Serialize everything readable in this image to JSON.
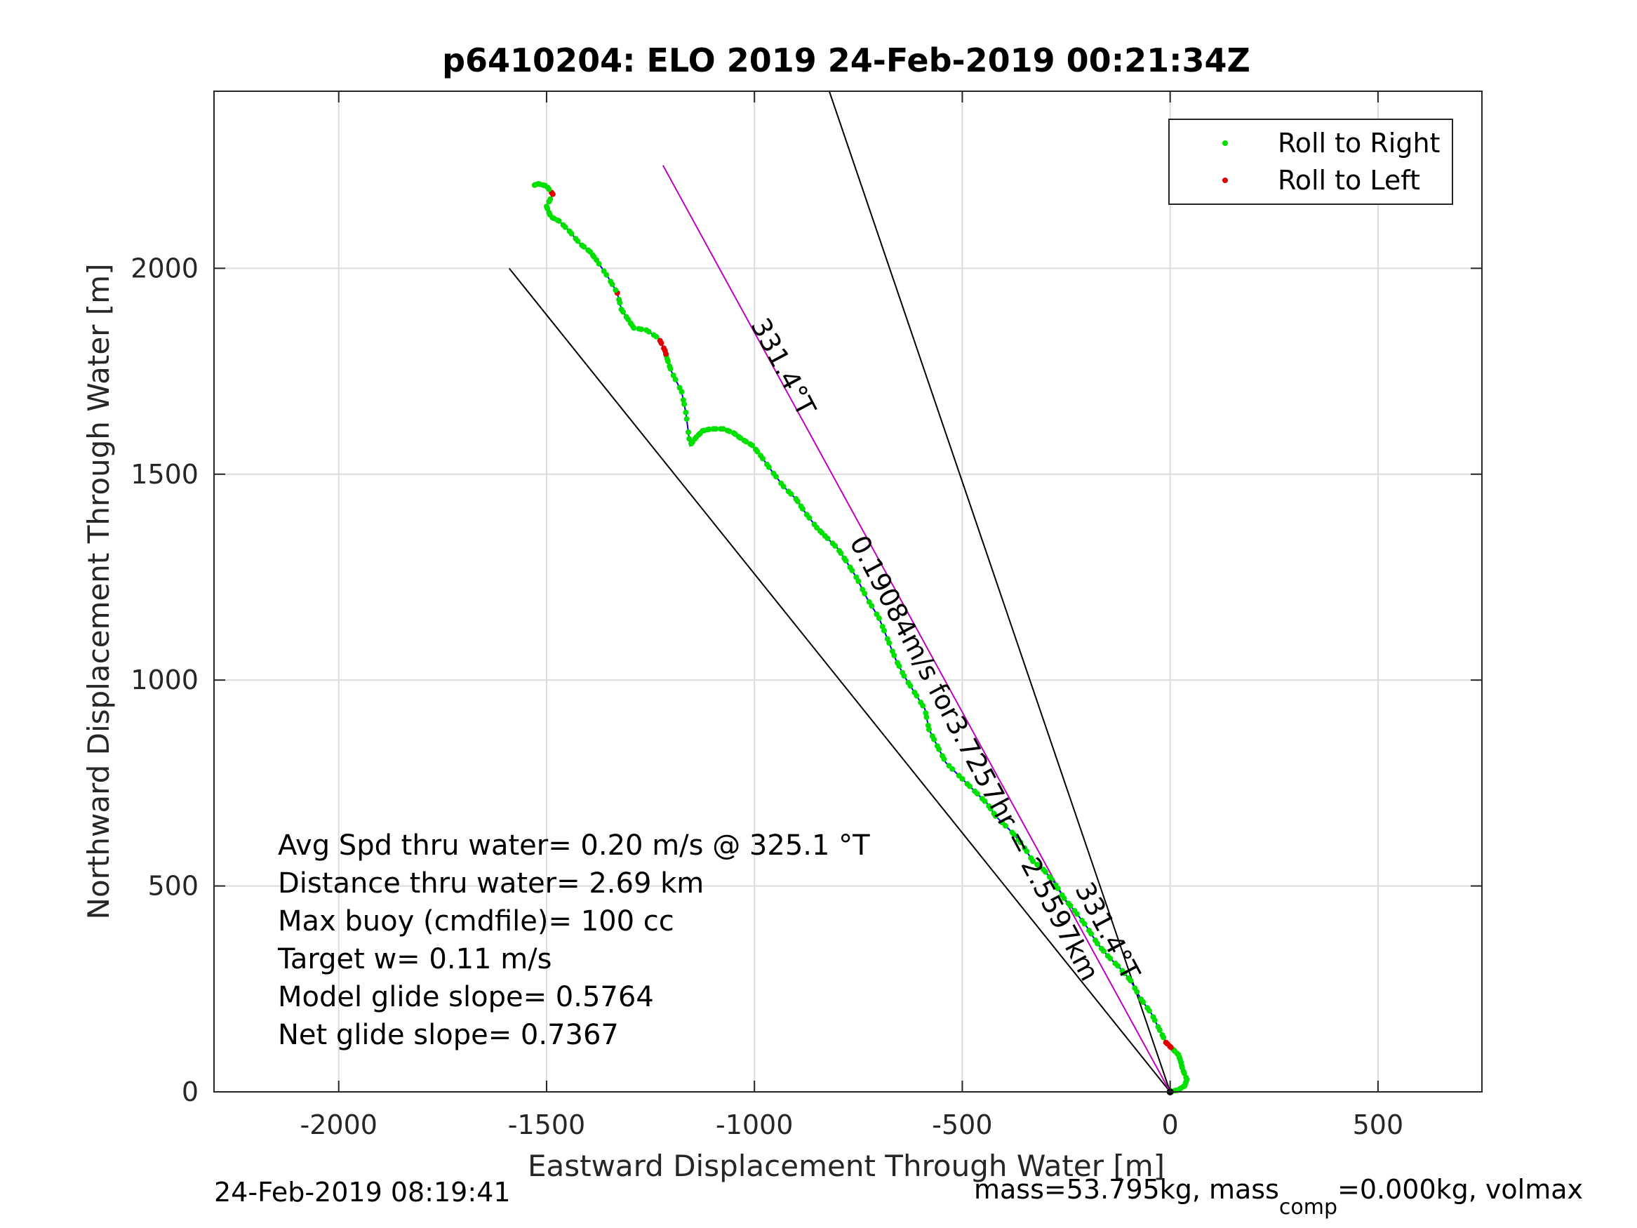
{
  "chart_data": {
    "type": "line",
    "title": "p6410204: ELO 2019 24-Feb-2019 00:21:34Z",
    "xlabel": "Eastward Displacement Through Water [m]",
    "ylabel": "Northward Displacement Through Water [m]",
    "xlim": [
      -2300,
      750
    ],
    "ylim": [
      0,
      2430
    ],
    "xticks": [
      -2000,
      -1500,
      -1000,
      -500,
      0,
      500
    ],
    "yticks": [
      0,
      500,
      1000,
      1500,
      2000
    ],
    "xtick_labels": [
      "-2000",
      "-1500",
      "-1000",
      "-500",
      "0",
      "500"
    ],
    "ytick_labels": [
      "0",
      "500",
      "1000",
      "1500",
      "2000"
    ],
    "grid": true,
    "legend_position": "top-right",
    "legend": [
      {
        "label": "Roll to Right",
        "color": "#00e000"
      },
      {
        "label": "Roll to Left",
        "color": "#e00000"
      }
    ],
    "track": {
      "color": "#0000e0",
      "points": [
        [
          0,
          0
        ],
        [
          20,
          5
        ],
        [
          35,
          15
        ],
        [
          40,
          30
        ],
        [
          30,
          55
        ],
        [
          25,
          75
        ],
        [
          20,
          90
        ],
        [
          5,
          105
        ],
        [
          -10,
          120
        ],
        [
          -25,
          150
        ],
        [
          -45,
          190
        ],
        [
          -70,
          225
        ],
        [
          -95,
          270
        ],
        [
          -120,
          300
        ],
        [
          -150,
          330
        ],
        [
          -175,
          360
        ],
        [
          -200,
          400
        ],
        [
          -230,
          440
        ],
        [
          -255,
          470
        ],
        [
          -280,
          510
        ],
        [
          -305,
          540
        ],
        [
          -330,
          560
        ],
        [
          -355,
          600
        ],
        [
          -380,
          630
        ],
        [
          -420,
          670
        ],
        [
          -440,
          700
        ],
        [
          -470,
          730
        ],
        [
          -500,
          760
        ],
        [
          -540,
          800
        ],
        [
          -560,
          840
        ],
        [
          -580,
          880
        ],
        [
          -590,
          930
        ],
        [
          -615,
          970
        ],
        [
          -640,
          1010
        ],
        [
          -660,
          1050
        ],
        [
          -680,
          1100
        ],
        [
          -700,
          1150
        ],
        [
          -730,
          1200
        ],
        [
          -755,
          1250
        ],
        [
          -780,
          1290
        ],
        [
          -800,
          1320
        ],
        [
          -830,
          1350
        ],
        [
          -850,
          1370
        ],
        [
          -880,
          1410
        ],
        [
          -900,
          1440
        ],
        [
          -930,
          1470
        ],
        [
          -960,
          1510
        ],
        [
          -985,
          1545
        ],
        [
          -1005,
          1570
        ],
        [
          -1030,
          1585
        ],
        [
          -1050,
          1600
        ],
        [
          -1075,
          1610
        ],
        [
          -1105,
          1610
        ],
        [
          -1125,
          1605
        ],
        [
          -1140,
          1590
        ],
        [
          -1155,
          1570
        ],
        [
          -1165,
          1650
        ],
        [
          -1175,
          1700
        ],
        [
          -1200,
          1750
        ],
        [
          -1210,
          1780
        ],
        [
          -1215,
          1800
        ],
        [
          -1230,
          1830
        ],
        [
          -1260,
          1850
        ],
        [
          -1290,
          1855
        ],
        [
          -1300,
          1870
        ],
        [
          -1320,
          1900
        ],
        [
          -1330,
          1940
        ],
        [
          -1350,
          1975
        ],
        [
          -1380,
          2020
        ],
        [
          -1395,
          2040
        ],
        [
          -1420,
          2060
        ],
        [
          -1445,
          2090
        ],
        [
          -1470,
          2115
        ],
        [
          -1490,
          2125
        ],
        [
          -1500,
          2150
        ],
        [
          -1485,
          2180
        ],
        [
          -1500,
          2200
        ],
        [
          -1520,
          2205
        ],
        [
          -1535,
          2200
        ]
      ],
      "left_roll_ranges_y": [
        [
          105,
          130
        ],
        [
          1925,
          1945
        ],
        [
          1790,
          1830
        ],
        [
          2170,
          2190
        ]
      ]
    },
    "reference_lines": [
      {
        "name": "line-a",
        "from": [
          0,
          0
        ],
        "to": [
          -1590,
          2000
        ],
        "color": "#000000"
      },
      {
        "name": "line-b",
        "from": [
          0,
          0
        ],
        "to": [
          -820,
          2430
        ],
        "color": "#000000"
      },
      {
        "name": "line-c",
        "from": [
          0,
          0
        ],
        "to": [
          -1220,
          2250
        ],
        "color": "#c000c0"
      }
    ],
    "line_labels": [
      {
        "text": "331.4°T",
        "at": [
          -950,
          1750
        ],
        "rotation": 62
      },
      {
        "text": "331.4°T",
        "at": [
          -170,
          380
        ],
        "rotation": 62
      },
      {
        "text": "0.19084m/s for3.7257hr = 2.5597km",
        "at": [
          -490,
          800
        ],
        "rotation": 62
      }
    ],
    "annotations": [
      "Avg Spd thru water=  0.20 m/s @ 325.1 °T",
      "Distance thru water=  2.69 km",
      "Max buoy (cmdfile)= 100 cc",
      "Target w= 0.11 m/s",
      "Model glide slope= 0.5764",
      "Net glide slope= 0.7367"
    ],
    "footer_left": "24-Feb-2019 08:19:41",
    "footer_right": {
      "prefix": "mass=53.795kg, mass",
      "subscript": "comp",
      "suffix": "=0.000kg, volmax"
    }
  }
}
